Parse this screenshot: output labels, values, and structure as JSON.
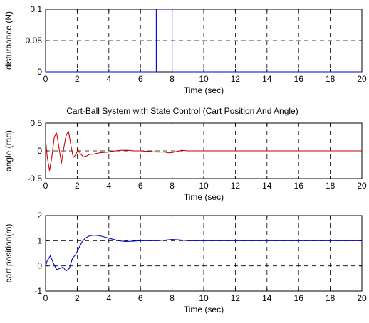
{
  "chart_data": [
    {
      "type": "line",
      "title": "",
      "xlabel": "Time (sec)",
      "ylabel": "disturbance (N)",
      "xlim": [
        0,
        20
      ],
      "ylim": [
        0,
        0.1
      ],
      "xticks": [
        "0",
        "2",
        "4",
        "6",
        "8",
        "10",
        "12",
        "14",
        "16",
        "18",
        "20"
      ],
      "yticks": [
        "0",
        "0.05",
        "0.1"
      ],
      "grid": true,
      "series": [
        {
          "color": "#0000cc",
          "x": [
            0,
            7,
            7,
            8,
            8,
            20
          ],
          "y": [
            0,
            0,
            0.1,
            0.1,
            0,
            0
          ]
        }
      ]
    },
    {
      "type": "line",
      "title": "Cart-Ball System with State Control (Cart Position And Angle)",
      "xlabel": "Time (sec)",
      "ylabel": "angle (rad)",
      "xlim": [
        0,
        20
      ],
      "ylim": [
        -0.5,
        0.5
      ],
      "xticks": [
        "0",
        "2",
        "4",
        "6",
        "8",
        "10",
        "12",
        "14",
        "16",
        "18",
        "20"
      ],
      "yticks": [
        "-0.5",
        "0",
        "0.5"
      ],
      "grid": true,
      "series": [
        {
          "color": "#cc0000",
          "x": [
            0,
            0.1,
            0.25,
            0.4,
            0.55,
            0.7,
            0.85,
            1.0,
            1.15,
            1.3,
            1.45,
            1.6,
            1.75,
            1.9,
            2.05,
            2.2,
            2.4,
            2.6,
            2.8,
            3.0,
            3.3,
            3.6,
            4.0,
            4.4,
            4.8,
            5.2,
            5.6,
            6.0,
            6.5,
            7.0,
            7.5,
            7.8,
            8.0,
            8.3,
            8.6,
            9.0,
            10,
            20
          ],
          "y": [
            0.2,
            -0.1,
            -0.36,
            -0.1,
            0.25,
            0.32,
            0.05,
            -0.22,
            0.05,
            0.28,
            0.35,
            0.1,
            -0.12,
            -0.07,
            0.02,
            -0.05,
            -0.11,
            -0.09,
            -0.06,
            -0.06,
            -0.04,
            -0.03,
            -0.02,
            0.0,
            0.01,
            0.01,
            0.0,
            0.0,
            -0.01,
            -0.02,
            -0.02,
            -0.035,
            -0.03,
            -0.01,
            0.01,
            0.0,
            0.0,
            0.0
          ]
        }
      ]
    },
    {
      "type": "line",
      "title": "",
      "xlabel": "Time (sec)",
      "ylabel": "cart position(m)",
      "xlim": [
        0,
        20
      ],
      "ylim": [
        -1,
        2
      ],
      "xticks": [
        "0",
        "2",
        "4",
        "6",
        "8",
        "10",
        "12",
        "14",
        "16",
        "18",
        "20"
      ],
      "yticks": [
        "-1",
        "0",
        "1",
        "2"
      ],
      "grid": true,
      "series": [
        {
          "color": "#0000cc",
          "x": [
            0,
            0.1,
            0.3,
            0.5,
            0.7,
            0.9,
            1.1,
            1.3,
            1.5,
            1.7,
            1.9,
            2.1,
            2.3,
            2.5,
            2.8,
            3.1,
            3.4,
            3.7,
            4.0,
            4.3,
            4.6,
            5.0,
            5.5,
            6.0,
            7.0,
            7.5,
            8.0,
            8.5,
            9.0,
            10,
            20
          ],
          "y": [
            0.0,
            0.2,
            0.4,
            0.1,
            -0.15,
            -0.1,
            -0.05,
            -0.2,
            -0.1,
            0.3,
            0.45,
            0.7,
            0.95,
            1.1,
            1.2,
            1.22,
            1.2,
            1.15,
            1.1,
            1.05,
            1.0,
            0.97,
            0.98,
            1.0,
            1.0,
            1.02,
            1.05,
            1.03,
            1.0,
            1.0,
            1.0
          ]
        }
      ]
    }
  ]
}
